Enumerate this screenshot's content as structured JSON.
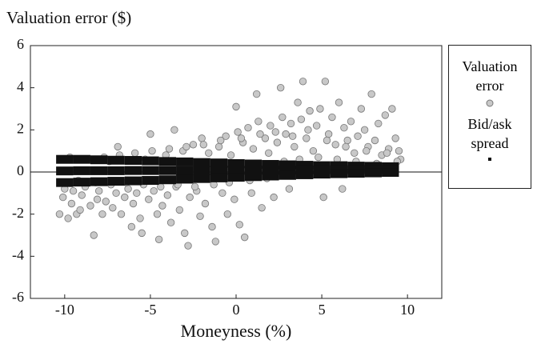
{
  "chart_data": {
    "type": "scatter",
    "title": "Valuation error ($)",
    "x_label": "Moneyness (%)",
    "xlim": [
      -12,
      12
    ],
    "ylim": [
      -6,
      6
    ],
    "xticks": [
      -10,
      -5,
      0,
      5,
      10
    ],
    "yticks": [
      -6,
      -4,
      -2,
      0,
      2,
      4,
      6
    ],
    "legend": "right",
    "series": [
      {
        "name": "Valuation error",
        "color": "#c8c8c8",
        "x": [
          -10.3,
          -10.1,
          -10.0,
          -9.8,
          -9.6,
          -9.5,
          -9.3,
          -9.1,
          -9.0,
          -8.8,
          -8.5,
          -8.3,
          -8.1,
          -8.0,
          -7.8,
          -7.6,
          -7.4,
          -7.2,
          -7.0,
          -6.9,
          -6.7,
          -6.5,
          -6.3,
          -6.1,
          -6.0,
          -5.8,
          -5.6,
          -5.5,
          -5.3,
          -5.1,
          -5.0,
          -4.8,
          -4.6,
          -4.5,
          -4.3,
          -4.1,
          -4.0,
          -3.8,
          -3.6,
          -3.5,
          -3.3,
          -3.1,
          -3.0,
          -2.8,
          -2.7,
          -2.5,
          -2.3,
          -2.1,
          -2.0,
          -1.8,
          -1.6,
          -1.4,
          -1.2,
          -1.0,
          -0.8,
          -0.6,
          -0.5,
          -0.3,
          -0.1,
          0.0,
          0.1,
          0.2,
          0.4,
          0.5,
          0.7,
          0.9,
          1.0,
          1.2,
          1.3,
          1.5,
          1.7,
          1.9,
          2.0,
          2.2,
          2.4,
          2.6,
          2.7,
          2.9,
          3.1,
          3.2,
          3.4,
          3.6,
          3.8,
          3.9,
          4.1,
          4.3,
          4.5,
          4.7,
          4.9,
          5.1,
          5.2,
          5.4,
          5.6,
          5.8,
          6.0,
          6.2,
          6.3,
          6.5,
          6.7,
          6.9,
          7.1,
          7.3,
          7.5,
          7.7,
          7.9,
          8.1,
          8.3,
          8.5,
          8.7,
          8.9,
          9.1,
          9.3,
          9.5,
          9.6,
          -10.2,
          -9.7,
          -9.2,
          -8.7,
          -8.2,
          -7.7,
          -7.3,
          -6.8,
          -6.4,
          -5.9,
          -5.4,
          -4.9,
          -4.4,
          -3.9,
          -3.4,
          -2.9,
          -2.4,
          -1.9,
          -1.3,
          -0.9,
          -0.4,
          0.3,
          0.8,
          1.4,
          1.8,
          2.3,
          2.8,
          3.3,
          3.7,
          4.2,
          4.8,
          5.3,
          5.9,
          6.4,
          7.0,
          7.6,
          8.2,
          8.8,
          9.4
        ],
        "y": [
          -2.0,
          -1.2,
          -0.8,
          -2.2,
          -1.5,
          -0.9,
          -2.0,
          -1.8,
          -1.1,
          -0.7,
          -1.6,
          -3.0,
          -1.3,
          -0.9,
          -2.0,
          -1.4,
          0.5,
          -1.7,
          -1.0,
          1.2,
          -2.0,
          -1.2,
          -0.8,
          -2.6,
          -1.5,
          -1.0,
          -2.2,
          -2.9,
          0.6,
          -1.3,
          1.8,
          -0.9,
          -2.0,
          -3.2,
          -1.6,
          0.8,
          -1.1,
          -2.4,
          2.0,
          -0.7,
          -1.8,
          1.0,
          -2.9,
          -3.5,
          -1.2,
          1.3,
          -0.9,
          -2.1,
          1.6,
          -1.5,
          0.9,
          -2.6,
          -3.3,
          1.2,
          -1.0,
          1.7,
          -2.0,
          0.8,
          -1.3,
          3.1,
          1.9,
          -2.5,
          1.4,
          -3.1,
          2.1,
          -1.0,
          1.1,
          3.7,
          2.4,
          -1.7,
          1.6,
          0.9,
          2.2,
          -1.2,
          1.4,
          4.0,
          2.6,
          1.8,
          -0.8,
          2.3,
          1.2,
          3.3,
          2.5,
          4.3,
          1.6,
          2.9,
          1.0,
          2.2,
          3.0,
          -1.2,
          4.3,
          1.8,
          2.6,
          1.3,
          3.3,
          -0.8,
          2.1,
          1.5,
          2.4,
          0.9,
          1.7,
          3.0,
          2.0,
          1.2,
          3.7,
          1.5,
          2.3,
          0.8,
          2.7,
          1.1,
          3.0,
          1.6,
          1.0,
          0.6,
          -0.5,
          0.7,
          -0.4,
          0.6,
          -0.5,
          0.7,
          -0.6,
          0.8,
          -0.5,
          0.9,
          -0.6,
          1.0,
          -0.7,
          1.1,
          -0.6,
          1.2,
          -0.7,
          1.3,
          -0.6,
          1.5,
          -0.5,
          1.6,
          -0.4,
          1.8,
          -0.3,
          1.9,
          0.5,
          1.7,
          0.6,
          2.0,
          0.7,
          1.5,
          0.6,
          1.2,
          0.5,
          1.0,
          0.4,
          0.9,
          0.5
        ]
      },
      {
        "name": "Bid/ask spread",
        "color": "#111111",
        "x": [
          -10,
          -9,
          -8,
          -7,
          -6,
          -5,
          -4,
          -3,
          -2,
          -1,
          0,
          1,
          2,
          3,
          4,
          5,
          6,
          7,
          8,
          9,
          -10,
          -9,
          -8,
          -7,
          -6,
          -5,
          -4,
          -3,
          -2,
          -1,
          0,
          1,
          2,
          3,
          4,
          5,
          6,
          7,
          8,
          9,
          -10,
          -9,
          -8,
          -7,
          -6,
          -5,
          -4,
          -3,
          -2,
          -1,
          0,
          1,
          2,
          3,
          4,
          5,
          6,
          7,
          8,
          9
        ],
        "y": [
          0.6,
          0.6,
          0.58,
          0.56,
          0.55,
          0.53,
          0.5,
          0.48,
          0.45,
          0.43,
          0.4,
          0.38,
          0.36,
          0.34,
          0.32,
          0.3,
          0.3,
          0.28,
          0.27,
          0.25,
          0.05,
          0.06,
          0.06,
          0.06,
          0.07,
          0.07,
          0.07,
          0.07,
          0.07,
          0.08,
          0.08,
          0.08,
          0.09,
          0.09,
          0.1,
          0.1,
          0.11,
          0.11,
          0.12,
          0.12,
          -0.5,
          -0.48,
          -0.46,
          -0.44,
          -0.42,
          -0.4,
          -0.37,
          -0.34,
          -0.31,
          -0.28,
          -0.25,
          -0.22,
          -0.19,
          -0.16,
          -0.13,
          -0.1,
          -0.08,
          -0.06,
          -0.04,
          -0.02
        ]
      }
    ]
  }
}
